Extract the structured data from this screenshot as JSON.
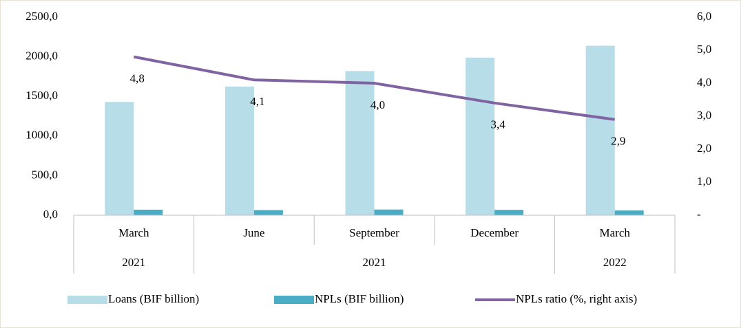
{
  "chart_data": {
    "type": "bar_line",
    "categories": [
      "March",
      "June",
      "September",
      "December",
      "March"
    ],
    "category_groups": [
      {
        "label": "2021",
        "span": 1
      },
      {
        "label": "2021",
        "span": 3
      },
      {
        "label": "2022",
        "span": 1
      }
    ],
    "series": [
      {
        "name": "Loans (BIF billion)",
        "type": "bar",
        "color": "#b7dde8",
        "values": [
          1430,
          1625,
          1820,
          1990,
          2140
        ]
      },
      {
        "name": "NPLs (BIF billion)",
        "type": "bar",
        "color": "#4bacc6",
        "values": [
          70,
          65,
          72,
          68,
          60
        ]
      },
      {
        "name": "NPLs ratio (%, right axis)",
        "type": "line",
        "axis": "y2",
        "color": "#8064a2",
        "values": [
          4.8,
          4.1,
          4.0,
          3.4,
          2.9
        ],
        "value_labels": [
          "4,8",
          "4,1",
          "4,0",
          "3,4",
          "2,9"
        ]
      }
    ],
    "ylim": [
      0,
      2500
    ],
    "yticks": [
      {
        "value": 0,
        "label": "0,0"
      },
      {
        "value": 500,
        "label": "500,0"
      },
      {
        "value": 1000,
        "label": "1000,0"
      },
      {
        "value": 1500,
        "label": "1500,0"
      },
      {
        "value": 2000,
        "label": "2000,0"
      },
      {
        "value": 2500,
        "label": "2500,0"
      }
    ],
    "y2lim": [
      0,
      6
    ],
    "y2ticks": [
      {
        "value": 0,
        "label": "-"
      },
      {
        "value": 1,
        "label": "1,0"
      },
      {
        "value": 2,
        "label": "2,0"
      },
      {
        "value": 3,
        "label": "3,0"
      },
      {
        "value": 4,
        "label": "4,0"
      },
      {
        "value": 5,
        "label": "5,0"
      },
      {
        "value": 6,
        "label": "6,0"
      }
    ],
    "legend": "bottom"
  }
}
